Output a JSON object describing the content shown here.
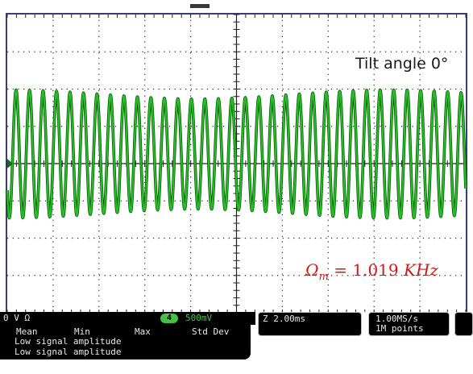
{
  "screen": {
    "tilt_label": "Tilt angle 0°",
    "omega_symbol": "Ω",
    "omega_sub": "m",
    "omega_eq": " = 1.019 ",
    "omega_unit": "KHz"
  },
  "waveform": {
    "cycles_visible": 34,
    "amplitude_fraction": 0.43,
    "trace_color": "#22c022",
    "trace_outline_color": "#0b4d0b",
    "grid_color": "#202020"
  },
  "status_bar": {
    "channel_text": "0 V  Ω",
    "channel_number": "4",
    "volts_per_div": "500mV",
    "measure_headers": {
      "mean": "Mean",
      "min": "Min",
      "max": "Max",
      "std": "Std Dev"
    },
    "measure_lines": [
      "Low signal amplitude",
      "Low signal amplitude"
    ],
    "timebase": "Z 2.00ms",
    "sample_rate": "1.00MS/s",
    "record_length": "1M points"
  }
}
